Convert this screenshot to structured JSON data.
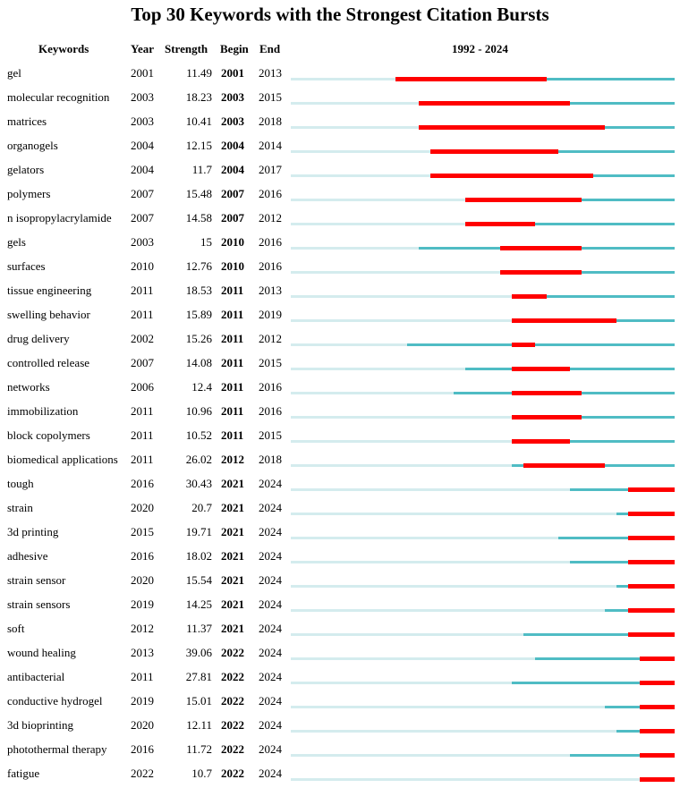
{
  "chart_data": {
    "type": "table",
    "title": "Top 30 Keywords with the Strongest Citation Bursts",
    "columns": [
      "Keywords",
      "Year",
      "Strength",
      "Begin",
      "End"
    ],
    "timeline_label": "1992 - 2024",
    "timeline_range": [
      1992,
      2024
    ],
    "colors": {
      "before_first_year": "#d4ecee",
      "after_first_year": "#4fbcc4",
      "burst": "#ff0000"
    },
    "rows": [
      {
        "keyword": "gel",
        "year": 2001,
        "strength": "11.49",
        "begin": 2001,
        "end": 2013
      },
      {
        "keyword": "molecular recognition",
        "year": 2003,
        "strength": "18.23",
        "begin": 2003,
        "end": 2015
      },
      {
        "keyword": "matrices",
        "year": 2003,
        "strength": "10.41",
        "begin": 2003,
        "end": 2018
      },
      {
        "keyword": "organogels",
        "year": 2004,
        "strength": "12.15",
        "begin": 2004,
        "end": 2014
      },
      {
        "keyword": "gelators",
        "year": 2004,
        "strength": "11.7",
        "begin": 2004,
        "end": 2017
      },
      {
        "keyword": "polymers",
        "year": 2007,
        "strength": "15.48",
        "begin": 2007,
        "end": 2016
      },
      {
        "keyword": "n isopropylacrylamide",
        "year": 2007,
        "strength": "14.58",
        "begin": 2007,
        "end": 2012
      },
      {
        "keyword": "gels",
        "year": 2003,
        "strength": "15",
        "begin": 2010,
        "end": 2016
      },
      {
        "keyword": "surfaces",
        "year": 2010,
        "strength": "12.76",
        "begin": 2010,
        "end": 2016
      },
      {
        "keyword": "tissue engineering",
        "year": 2011,
        "strength": "18.53",
        "begin": 2011,
        "end": 2013
      },
      {
        "keyword": "swelling behavior",
        "year": 2011,
        "strength": "15.89",
        "begin": 2011,
        "end": 2019
      },
      {
        "keyword": "drug delivery",
        "year": 2002,
        "strength": "15.26",
        "begin": 2011,
        "end": 2012
      },
      {
        "keyword": "controlled release",
        "year": 2007,
        "strength": "14.08",
        "begin": 2011,
        "end": 2015
      },
      {
        "keyword": "networks",
        "year": 2006,
        "strength": "12.4",
        "begin": 2011,
        "end": 2016
      },
      {
        "keyword": "immobilization",
        "year": 2011,
        "strength": "10.96",
        "begin": 2011,
        "end": 2016
      },
      {
        "keyword": "block copolymers",
        "year": 2011,
        "strength": "10.52",
        "begin": 2011,
        "end": 2015
      },
      {
        "keyword": "biomedical applications",
        "year": 2011,
        "strength": "26.02",
        "begin": 2012,
        "end": 2018
      },
      {
        "keyword": "tough",
        "year": 2016,
        "strength": "30.43",
        "begin": 2021,
        "end": 2024
      },
      {
        "keyword": "strain",
        "year": 2020,
        "strength": "20.7",
        "begin": 2021,
        "end": 2024
      },
      {
        "keyword": "3d printing",
        "year": 2015,
        "strength": "19.71",
        "begin": 2021,
        "end": 2024
      },
      {
        "keyword": "adhesive",
        "year": 2016,
        "strength": "18.02",
        "begin": 2021,
        "end": 2024
      },
      {
        "keyword": "strain sensor",
        "year": 2020,
        "strength": "15.54",
        "begin": 2021,
        "end": 2024
      },
      {
        "keyword": "strain sensors",
        "year": 2019,
        "strength": "14.25",
        "begin": 2021,
        "end": 2024
      },
      {
        "keyword": "soft",
        "year": 2012,
        "strength": "11.37",
        "begin": 2021,
        "end": 2024
      },
      {
        "keyword": "wound healing",
        "year": 2013,
        "strength": "39.06",
        "begin": 2022,
        "end": 2024
      },
      {
        "keyword": "antibacterial",
        "year": 2011,
        "strength": "27.81",
        "begin": 2022,
        "end": 2024
      },
      {
        "keyword": "conductive hydrogel",
        "year": 2019,
        "strength": "15.01",
        "begin": 2022,
        "end": 2024
      },
      {
        "keyword": "3d bioprinting",
        "year": 2020,
        "strength": "12.11",
        "begin": 2022,
        "end": 2024
      },
      {
        "keyword": "photothermal therapy",
        "year": 2016,
        "strength": "11.72",
        "begin": 2022,
        "end": 2024
      },
      {
        "keyword": "fatigue",
        "year": 2022,
        "strength": "10.7",
        "begin": 2022,
        "end": 2024
      }
    ]
  }
}
